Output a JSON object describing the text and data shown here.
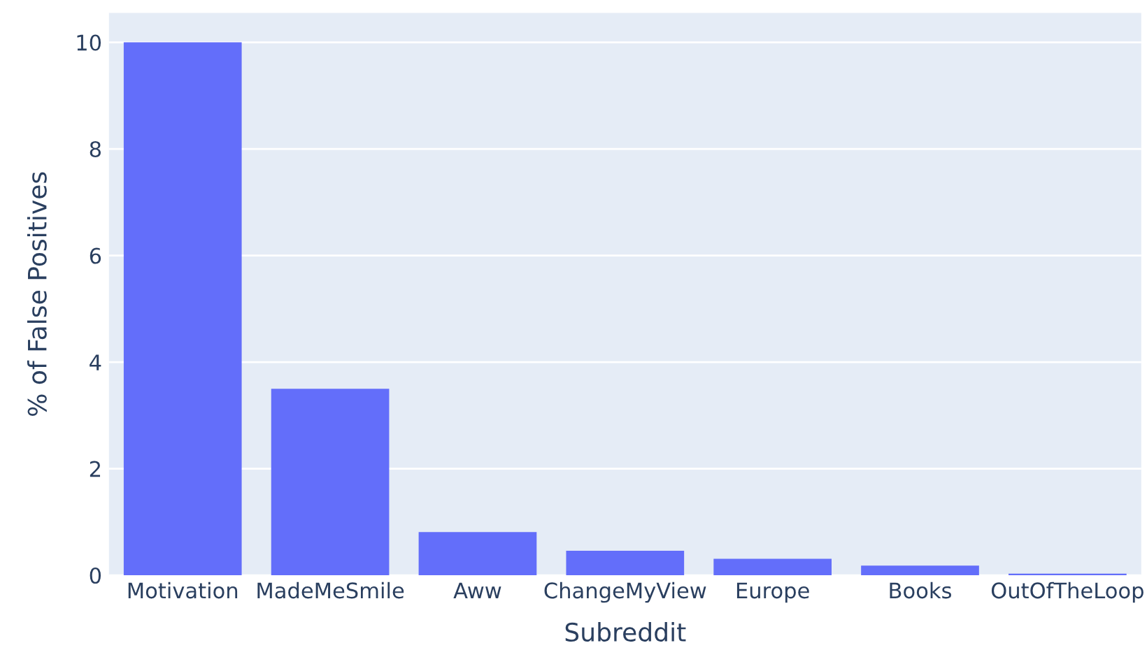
{
  "chart_data": {
    "type": "bar",
    "xlabel": "Subreddit",
    "ylabel": "% of False Positives",
    "categories": [
      "Motivation",
      "MadeMeSmile",
      "Aww",
      "ChangeMyView",
      "Europe",
      "Books",
      "OutOfTheLoop"
    ],
    "values": [
      10,
      3.5,
      0.81,
      0.46,
      0.31,
      0.18,
      0.03
    ],
    "color": "#636efa",
    "ylim": [
      0,
      10.55
    ],
    "yticks": [
      0,
      2,
      4,
      6,
      8,
      10
    ],
    "grid": "y"
  }
}
